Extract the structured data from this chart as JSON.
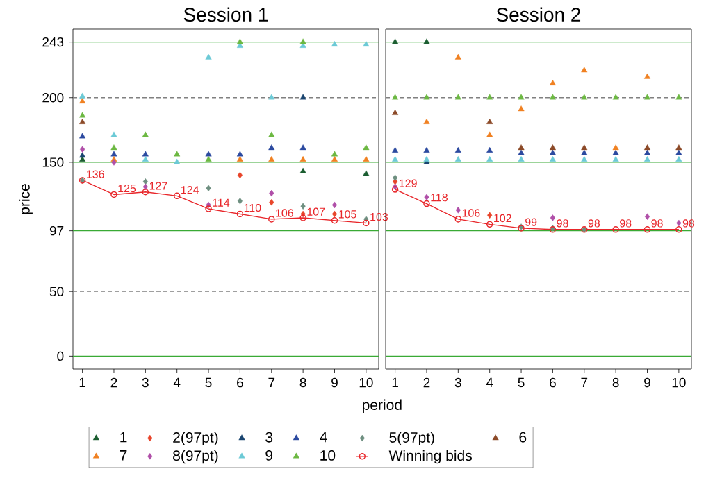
{
  "chart_data": [
    {
      "type": "scatter",
      "title": "Session 1",
      "xlabel": "period",
      "ylabel": "price",
      "x": [
        1,
        2,
        3,
        4,
        5,
        6,
        7,
        8,
        9,
        10
      ],
      "xlim": [
        0.7,
        10.4
      ],
      "xticks": [
        1,
        2,
        3,
        4,
        5,
        6,
        7,
        8,
        9,
        10
      ],
      "ylim": [
        -10,
        253
      ],
      "yticks": [
        0,
        50,
        97,
        150,
        200,
        243
      ],
      "legend": "bottom",
      "ref_lines": [
        {
          "axis": "y",
          "value": 0,
          "color": "#3aaa35",
          "line_style": "solid"
        },
        {
          "axis": "y",
          "value": 50,
          "color": "#808080",
          "line_style": "dashed"
        },
        {
          "axis": "y",
          "value": 97,
          "color": "#3aaa35",
          "line_style": "solid"
        },
        {
          "axis": "y",
          "value": 150,
          "color": "#3aaa35",
          "line_style": "solid"
        },
        {
          "axis": "y",
          "value": 200,
          "color": "#808080",
          "line_style": "dashed"
        },
        {
          "axis": "y",
          "value": 243,
          "color": "#3aaa35",
          "line_style": "solid"
        }
      ],
      "series": [
        {
          "name": "1",
          "color": "#1b5e31",
          "marker": "triangle",
          "values": [
            152,
            null,
            null,
            null,
            null,
            null,
            null,
            143,
            null,
            141
          ]
        },
        {
          "name": "2(97pt)",
          "color": "#e8452a",
          "marker": "diamond",
          "values": [
            null,
            null,
            null,
            null,
            null,
            140,
            119,
            110,
            110,
            null
          ]
        },
        {
          "name": "3",
          "color": "#1a4570",
          "marker": "triangle",
          "values": [
            155,
            null,
            null,
            null,
            null,
            null,
            null,
            200,
            null,
            null
          ]
        },
        {
          "name": "4",
          "color": "#2c4aa0",
          "marker": "triangle",
          "values": [
            170,
            156,
            156,
            null,
            156,
            156,
            161,
            161,
            null,
            null
          ]
        },
        {
          "name": "5(97pt)",
          "color": "#6e8f80",
          "marker": "diamond",
          "values": [
            136,
            null,
            135,
            null,
            130,
            120,
            null,
            116,
            null,
            106
          ]
        },
        {
          "name": "6",
          "color": "#8c4a28",
          "marker": "triangle",
          "values": [
            181,
            null,
            null,
            null,
            null,
            null,
            null,
            null,
            null,
            null
          ]
        },
        {
          "name": "7",
          "color": "#f08122",
          "marker": "triangle",
          "values": [
            197,
            152,
            null,
            null,
            null,
            152,
            152,
            152,
            152,
            152
          ]
        },
        {
          "name": "8(97pt)",
          "color": "#b04fa8",
          "marker": "diamond",
          "values": [
            160,
            150,
            131,
            null,
            117,
            null,
            126,
            null,
            117,
            null
          ]
        },
        {
          "name": "9",
          "color": "#6ccad6",
          "marker": "triangle",
          "values": [
            201,
            171,
            152,
            150,
            231,
            240,
            200,
            240,
            241,
            241
          ]
        },
        {
          "name": "10",
          "color": "#6cb842",
          "marker": "triangle",
          "values": [
            186,
            161,
            171,
            156,
            152,
            243,
            171,
            243,
            156,
            161
          ]
        },
        {
          "name": "Winning bids",
          "type": "line",
          "color": "#e8262a",
          "marker": "circle",
          "line_style": "solid",
          "values": [
            136,
            125,
            127,
            124,
            114,
            110,
            106,
            107,
            105,
            103
          ],
          "value_labels": [
            "136",
            "125",
            "127",
            "124",
            "114",
            "110",
            "106",
            "107",
            "105",
            "103"
          ]
        }
      ]
    },
    {
      "type": "scatter",
      "title": "Session 2",
      "x": [
        1,
        2,
        3,
        4,
        5,
        6,
        7,
        8,
        9,
        10
      ],
      "xlim": [
        0.7,
        10.4
      ],
      "xticks": [
        1,
        2,
        3,
        4,
        5,
        6,
        7,
        8,
        9,
        10
      ],
      "ylim": [
        -10,
        253
      ],
      "yticks": [
        0,
        50,
        97,
        150,
        200,
        243
      ],
      "tick_labels": "x",
      "ref_lines": [
        {
          "axis": "y",
          "value": 0,
          "color": "#3aaa35",
          "line_style": "solid"
        },
        {
          "axis": "y",
          "value": 50,
          "color": "#808080",
          "line_style": "dashed"
        },
        {
          "axis": "y",
          "value": 97,
          "color": "#3aaa35",
          "line_style": "solid"
        },
        {
          "axis": "y",
          "value": 150,
          "color": "#3aaa35",
          "line_style": "solid"
        },
        {
          "axis": "y",
          "value": 200,
          "color": "#808080",
          "line_style": "dashed"
        },
        {
          "axis": "y",
          "value": 243,
          "color": "#3aaa35",
          "line_style": "solid"
        }
      ],
      "series": [
        {
          "color": "#1b5e31",
          "marker": "triangle",
          "values": [
            243,
            243,
            null,
            null,
            null,
            null,
            null,
            null,
            null,
            null
          ]
        },
        {
          "color": "#e8452a",
          "marker": "diamond",
          "values": [
            135,
            null,
            null,
            109,
            null,
            null,
            null,
            null,
            null,
            null
          ]
        },
        {
          "color": "#1a4570",
          "marker": "triangle",
          "values": [
            null,
            150,
            null,
            null,
            null,
            null,
            null,
            null,
            null,
            null
          ]
        },
        {
          "color": "#2c4aa0",
          "marker": "triangle",
          "values": [
            159,
            159,
            159,
            159,
            157,
            157,
            157,
            157,
            157,
            157
          ]
        },
        {
          "color": "#6e8f80",
          "marker": "diamond",
          "values": [
            138,
            null,
            null,
            null,
            100,
            99,
            98,
            null,
            null,
            null
          ]
        },
        {
          "color": "#8c4a28",
          "marker": "triangle",
          "values": [
            188,
            null,
            null,
            181,
            161,
            161,
            161,
            null,
            161,
            161
          ]
        },
        {
          "color": "#f08122",
          "marker": "triangle",
          "values": [
            null,
            181,
            231,
            171,
            191,
            211,
            221,
            161,
            216,
            null
          ]
        },
        {
          "color": "#b04fa8",
          "marker": "diamond",
          "values": [
            131,
            123,
            113,
            null,
            null,
            107,
            null,
            null,
            108,
            103
          ]
        },
        {
          "color": "#6ccad6",
          "marker": "triangle",
          "values": [
            152,
            152,
            152,
            152,
            152,
            152,
            152,
            152,
            152,
            152
          ]
        },
        {
          "color": "#6cb842",
          "marker": "triangle",
          "values": [
            200,
            200,
            200,
            200,
            200,
            200,
            200,
            200,
            200,
            200
          ]
        },
        {
          "type": "line",
          "color": "#e8262a",
          "marker": "circle",
          "line_style": "solid",
          "values": [
            129,
            118,
            106,
            102,
            99,
            98,
            98,
            98,
            98,
            98
          ],
          "value_labels": [
            "129",
            "118",
            "106",
            "102",
            "99",
            "98",
            "98",
            "98",
            "98",
            "98"
          ]
        }
      ]
    }
  ]
}
